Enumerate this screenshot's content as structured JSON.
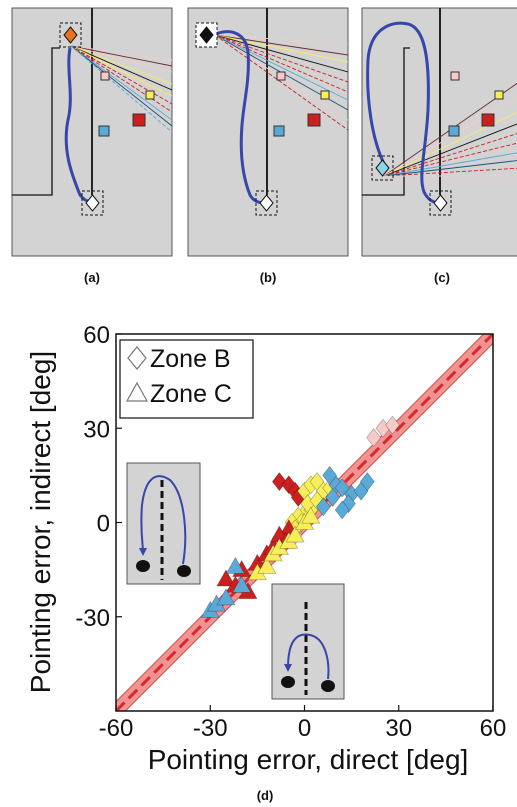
{
  "panels": [
    {
      "label": "(a)",
      "path": "below"
    },
    {
      "label": "(b)",
      "path": "left"
    },
    {
      "label": "(c)",
      "path": "left-return"
    }
  ],
  "scatter_label": "(d)",
  "colors": {
    "start_orange": "#e8731b",
    "start_black": "#111111",
    "start_cyan": "#8fd3e6",
    "path_blue": "#3547a8",
    "zone_b_pink": "#f7caca",
    "target_yellow": "#f6ee5a",
    "target_blue": "#5aa9d6",
    "target_red": "#cc1f1f",
    "band": "#f08080",
    "fit": "#d62a2a",
    "panel_bg": "#d3d3d3"
  },
  "chart_data": {
    "type": "scatter",
    "xlabel": "Pointing error, direct [deg]",
    "ylabel": "Pointing error, indirect [deg]",
    "xlim": [
      -60,
      60
    ],
    "ylim": [
      -60,
      60
    ],
    "xticks": [
      "-60",
      "-30",
      "0",
      "30",
      "60"
    ],
    "yticks": [
      "-30",
      "0",
      "30",
      "60"
    ],
    "legend": {
      "position": "top-left",
      "entries": [
        {
          "marker": "diamond",
          "label": "Zone B"
        },
        {
          "marker": "triangle",
          "label": "Zone C"
        }
      ]
    },
    "fit": {
      "slope": 1.0,
      "intercept": 0,
      "band": 3
    },
    "series": [
      {
        "marker": "diamond",
        "color": "pink",
        "points": [
          [
            25,
            30
          ],
          [
            28,
            31
          ],
          [
            22,
            27
          ],
          [
            -5,
            -3
          ],
          [
            -8,
            -5
          ],
          [
            -3,
            -4
          ]
        ]
      },
      {
        "marker": "diamond",
        "color": "red",
        "points": [
          [
            -8,
            13
          ],
          [
            -5,
            12
          ],
          [
            -3,
            10
          ],
          [
            -2,
            8
          ]
        ]
      },
      {
        "marker": "diamond",
        "color": "yellow",
        "points": [
          [
            0,
            10
          ],
          [
            2,
            12
          ],
          [
            4,
            13
          ],
          [
            5,
            8
          ],
          [
            3,
            5
          ],
          [
            0,
            3
          ],
          [
            -2,
            2
          ],
          [
            -1,
            0
          ],
          [
            2,
            4
          ],
          [
            6,
            10
          ],
          [
            8,
            11
          ],
          [
            -4,
            0
          ],
          [
            -3,
            -2
          ],
          [
            1,
            6
          ],
          [
            4,
            7
          ],
          [
            -5,
            -5
          ]
        ]
      },
      {
        "marker": "diamond",
        "color": "blue",
        "points": [
          [
            10,
            12
          ],
          [
            12,
            11
          ],
          [
            15,
            9
          ],
          [
            18,
            10
          ],
          [
            20,
            13
          ],
          [
            14,
            6
          ],
          [
            8,
            15
          ],
          [
            9,
            8
          ],
          [
            6,
            5
          ],
          [
            12,
            4
          ]
        ]
      },
      {
        "marker": "triangle",
        "color": "red",
        "points": [
          [
            -25,
            -18
          ],
          [
            -20,
            -15
          ],
          [
            -22,
            -20
          ],
          [
            -18,
            -22
          ],
          [
            -15,
            -13
          ],
          [
            -12,
            -10
          ],
          [
            -10,
            -8
          ],
          [
            -5,
            -2
          ],
          [
            -8,
            -4
          ],
          [
            -6,
            -6
          ]
        ]
      },
      {
        "marker": "triangle",
        "color": "yellow",
        "points": [
          [
            -15,
            -16
          ],
          [
            -12,
            -14
          ],
          [
            -10,
            -10
          ],
          [
            -8,
            -8
          ],
          [
            -5,
            -6
          ],
          [
            -3,
            -4
          ],
          [
            0,
            0
          ],
          [
            2,
            2
          ]
        ]
      },
      {
        "marker": "triangle",
        "color": "blue",
        "points": [
          [
            -30,
            -28
          ],
          [
            -28,
            -26
          ],
          [
            -25,
            -24
          ],
          [
            -22,
            -14
          ],
          [
            -20,
            -20
          ]
        ]
      }
    ]
  }
}
